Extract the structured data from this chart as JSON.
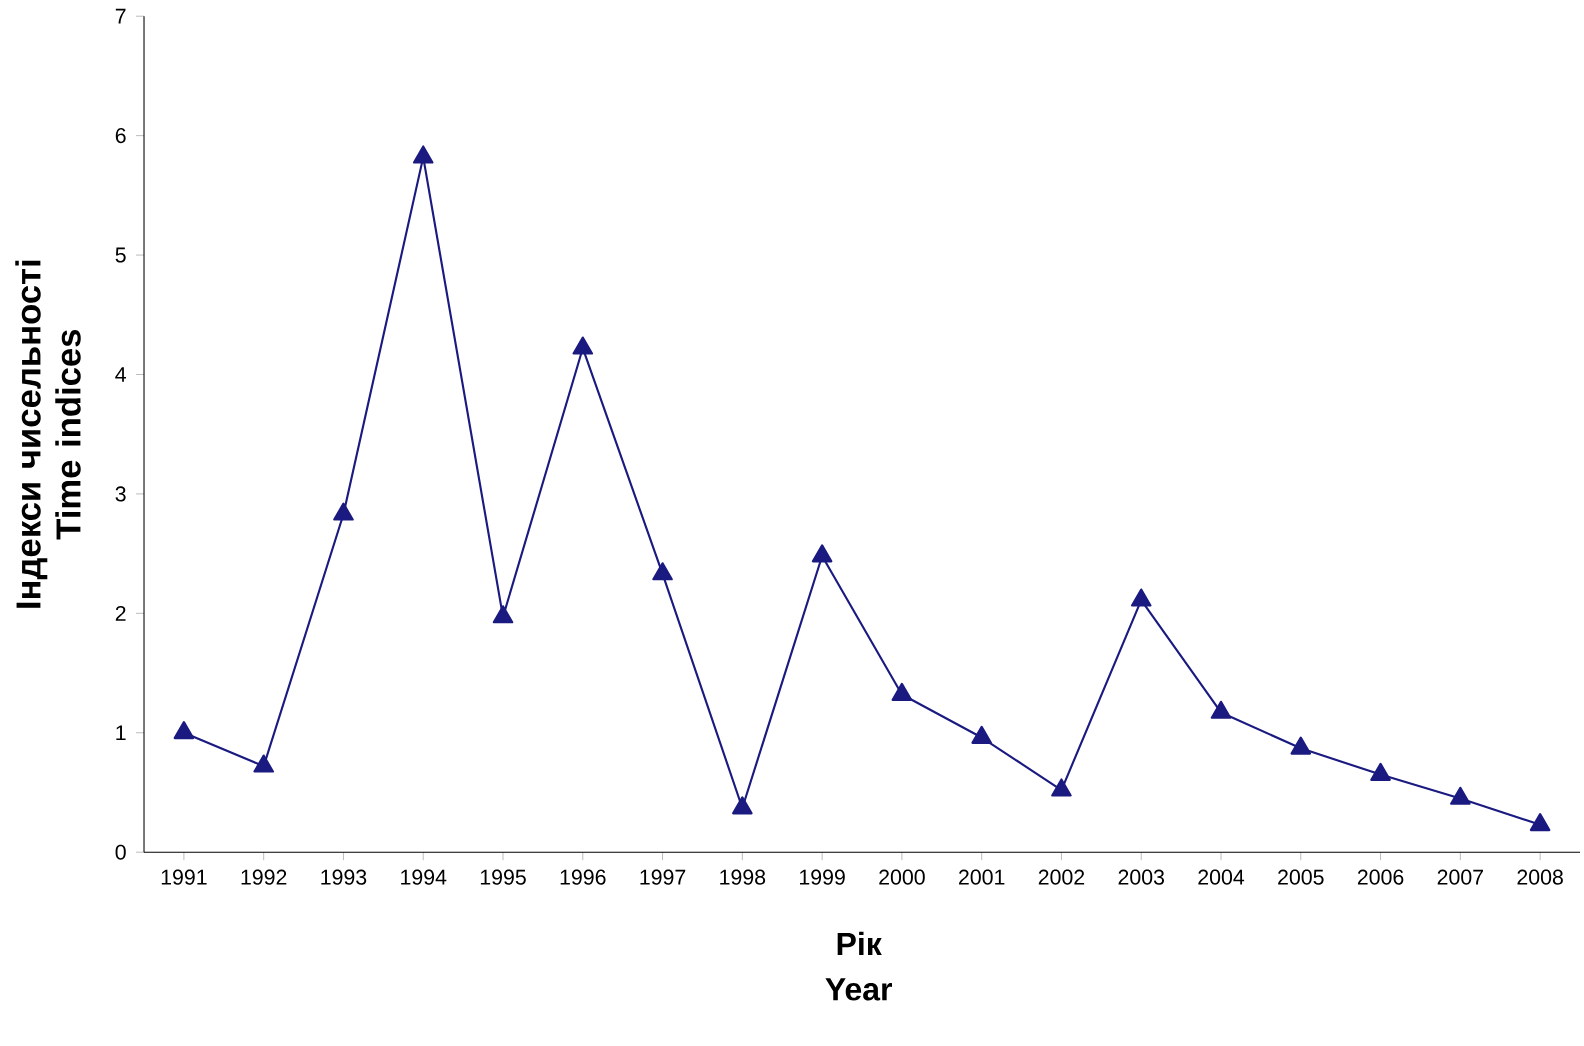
{
  "chart_data": {
    "type": "line",
    "xlabel": "Рік Year",
    "ylabel": "Індекси чисельності Time indices",
    "categories": [
      "1991",
      "1992",
      "1993",
      "1994",
      "1995",
      "1996",
      "1997",
      "1998",
      "1999",
      "2000",
      "2001",
      "2002",
      "2003",
      "2004",
      "2005",
      "2006",
      "2007",
      "2008"
    ],
    "values": [
      1.0,
      0.72,
      2.83,
      5.82,
      1.97,
      4.22,
      2.33,
      0.37,
      2.48,
      1.32,
      0.96,
      0.52,
      2.11,
      1.17,
      0.87,
      0.65,
      0.45,
      0.23
    ],
    "color": "#1a1a80",
    "marker": "triangle",
    "ylim": [
      0,
      7
    ],
    "yticks": [
      0,
      1,
      2,
      3,
      4,
      5,
      6,
      7
    ]
  }
}
